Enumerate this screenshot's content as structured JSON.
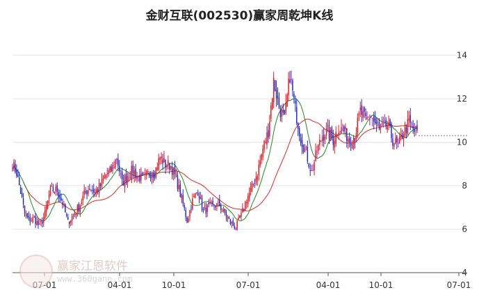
{
  "chart_data": {
    "type": "candlestick",
    "title": "金财互联(002530)赢家周乾坤K线",
    "x_tick_labels": [
      "07-01",
      "04-01",
      "10-01",
      "07-01",
      "04-01",
      "10-01",
      "07-01"
    ],
    "y_ticks": [
      4,
      6,
      8,
      10,
      12,
      14
    ],
    "ylim": [
      4,
      15
    ],
    "last_price": 10.3,
    "colors": {
      "up": "#e8141b",
      "down": "#1f28c8",
      "neutral": "#9b1f9b",
      "ma_short": "#1d8a1d",
      "ma_long": "#e32626"
    },
    "anchors": [
      [
        0,
        9.0
      ],
      [
        3,
        8.6
      ],
      [
        6,
        7.7
      ],
      [
        9,
        6.7
      ],
      [
        12,
        6.4
      ],
      [
        16,
        6.5
      ],
      [
        20,
        6.1
      ],
      [
        24,
        6.7
      ],
      [
        28,
        7.8
      ],
      [
        33,
        7.8
      ],
      [
        37,
        7.2
      ],
      [
        41,
        6.3
      ],
      [
        45,
        6.7
      ],
      [
        49,
        7.0
      ],
      [
        53,
        7.6
      ],
      [
        57,
        7.9
      ],
      [
        61,
        7.7
      ],
      [
        65,
        8.0
      ],
      [
        69,
        8.5
      ],
      [
        73,
        8.7
      ],
      [
        77,
        9.3
      ],
      [
        81,
        8.1
      ],
      [
        85,
        8.5
      ],
      [
        89,
        8.7
      ],
      [
        93,
        8.4
      ],
      [
        97,
        8.3
      ],
      [
        101,
        8.6
      ],
      [
        105,
        8.6
      ],
      [
        109,
        9.3
      ],
      [
        113,
        9.0
      ],
      [
        117,
        8.9
      ],
      [
        121,
        8.3
      ],
      [
        125,
        7.4
      ],
      [
        129,
        6.4
      ],
      [
        133,
        7.3
      ],
      [
        137,
        7.8
      ],
      [
        141,
        6.8
      ],
      [
        145,
        7.0
      ],
      [
        149,
        7.1
      ],
      [
        153,
        7.1
      ],
      [
        157,
        6.7
      ],
      [
        161,
        6.3
      ],
      [
        165,
        6.1
      ],
      [
        169,
        6.6
      ],
      [
        173,
        7.4
      ],
      [
        177,
        7.9
      ],
      [
        181,
        8.6
      ],
      [
        185,
        9.7
      ],
      [
        189,
        10.5
      ],
      [
        193,
        12.8
      ],
      [
        197,
        11.6
      ],
      [
        201,
        11.0
      ],
      [
        205,
        13.1
      ],
      [
        209,
        11.5
      ],
      [
        213,
        10.2
      ],
      [
        217,
        9.5
      ],
      [
        221,
        8.6
      ],
      [
        225,
        9.6
      ],
      [
        229,
        10.3
      ],
      [
        233,
        10.5
      ],
      [
        237,
        10.1
      ],
      [
        241,
        10.7
      ],
      [
        245,
        10.5
      ],
      [
        249,
        10.1
      ],
      [
        253,
        10.3
      ],
      [
        257,
        11.4
      ],
      [
        261,
        11.0
      ],
      [
        265,
        11.2
      ],
      [
        269,
        10.7
      ],
      [
        273,
        10.6
      ],
      [
        277,
        10.8
      ],
      [
        281,
        10.1
      ],
      [
        285,
        9.8
      ],
      [
        289,
        10.5
      ],
      [
        293,
        10.9
      ],
      [
        297,
        10.5
      ]
    ]
  }
}
